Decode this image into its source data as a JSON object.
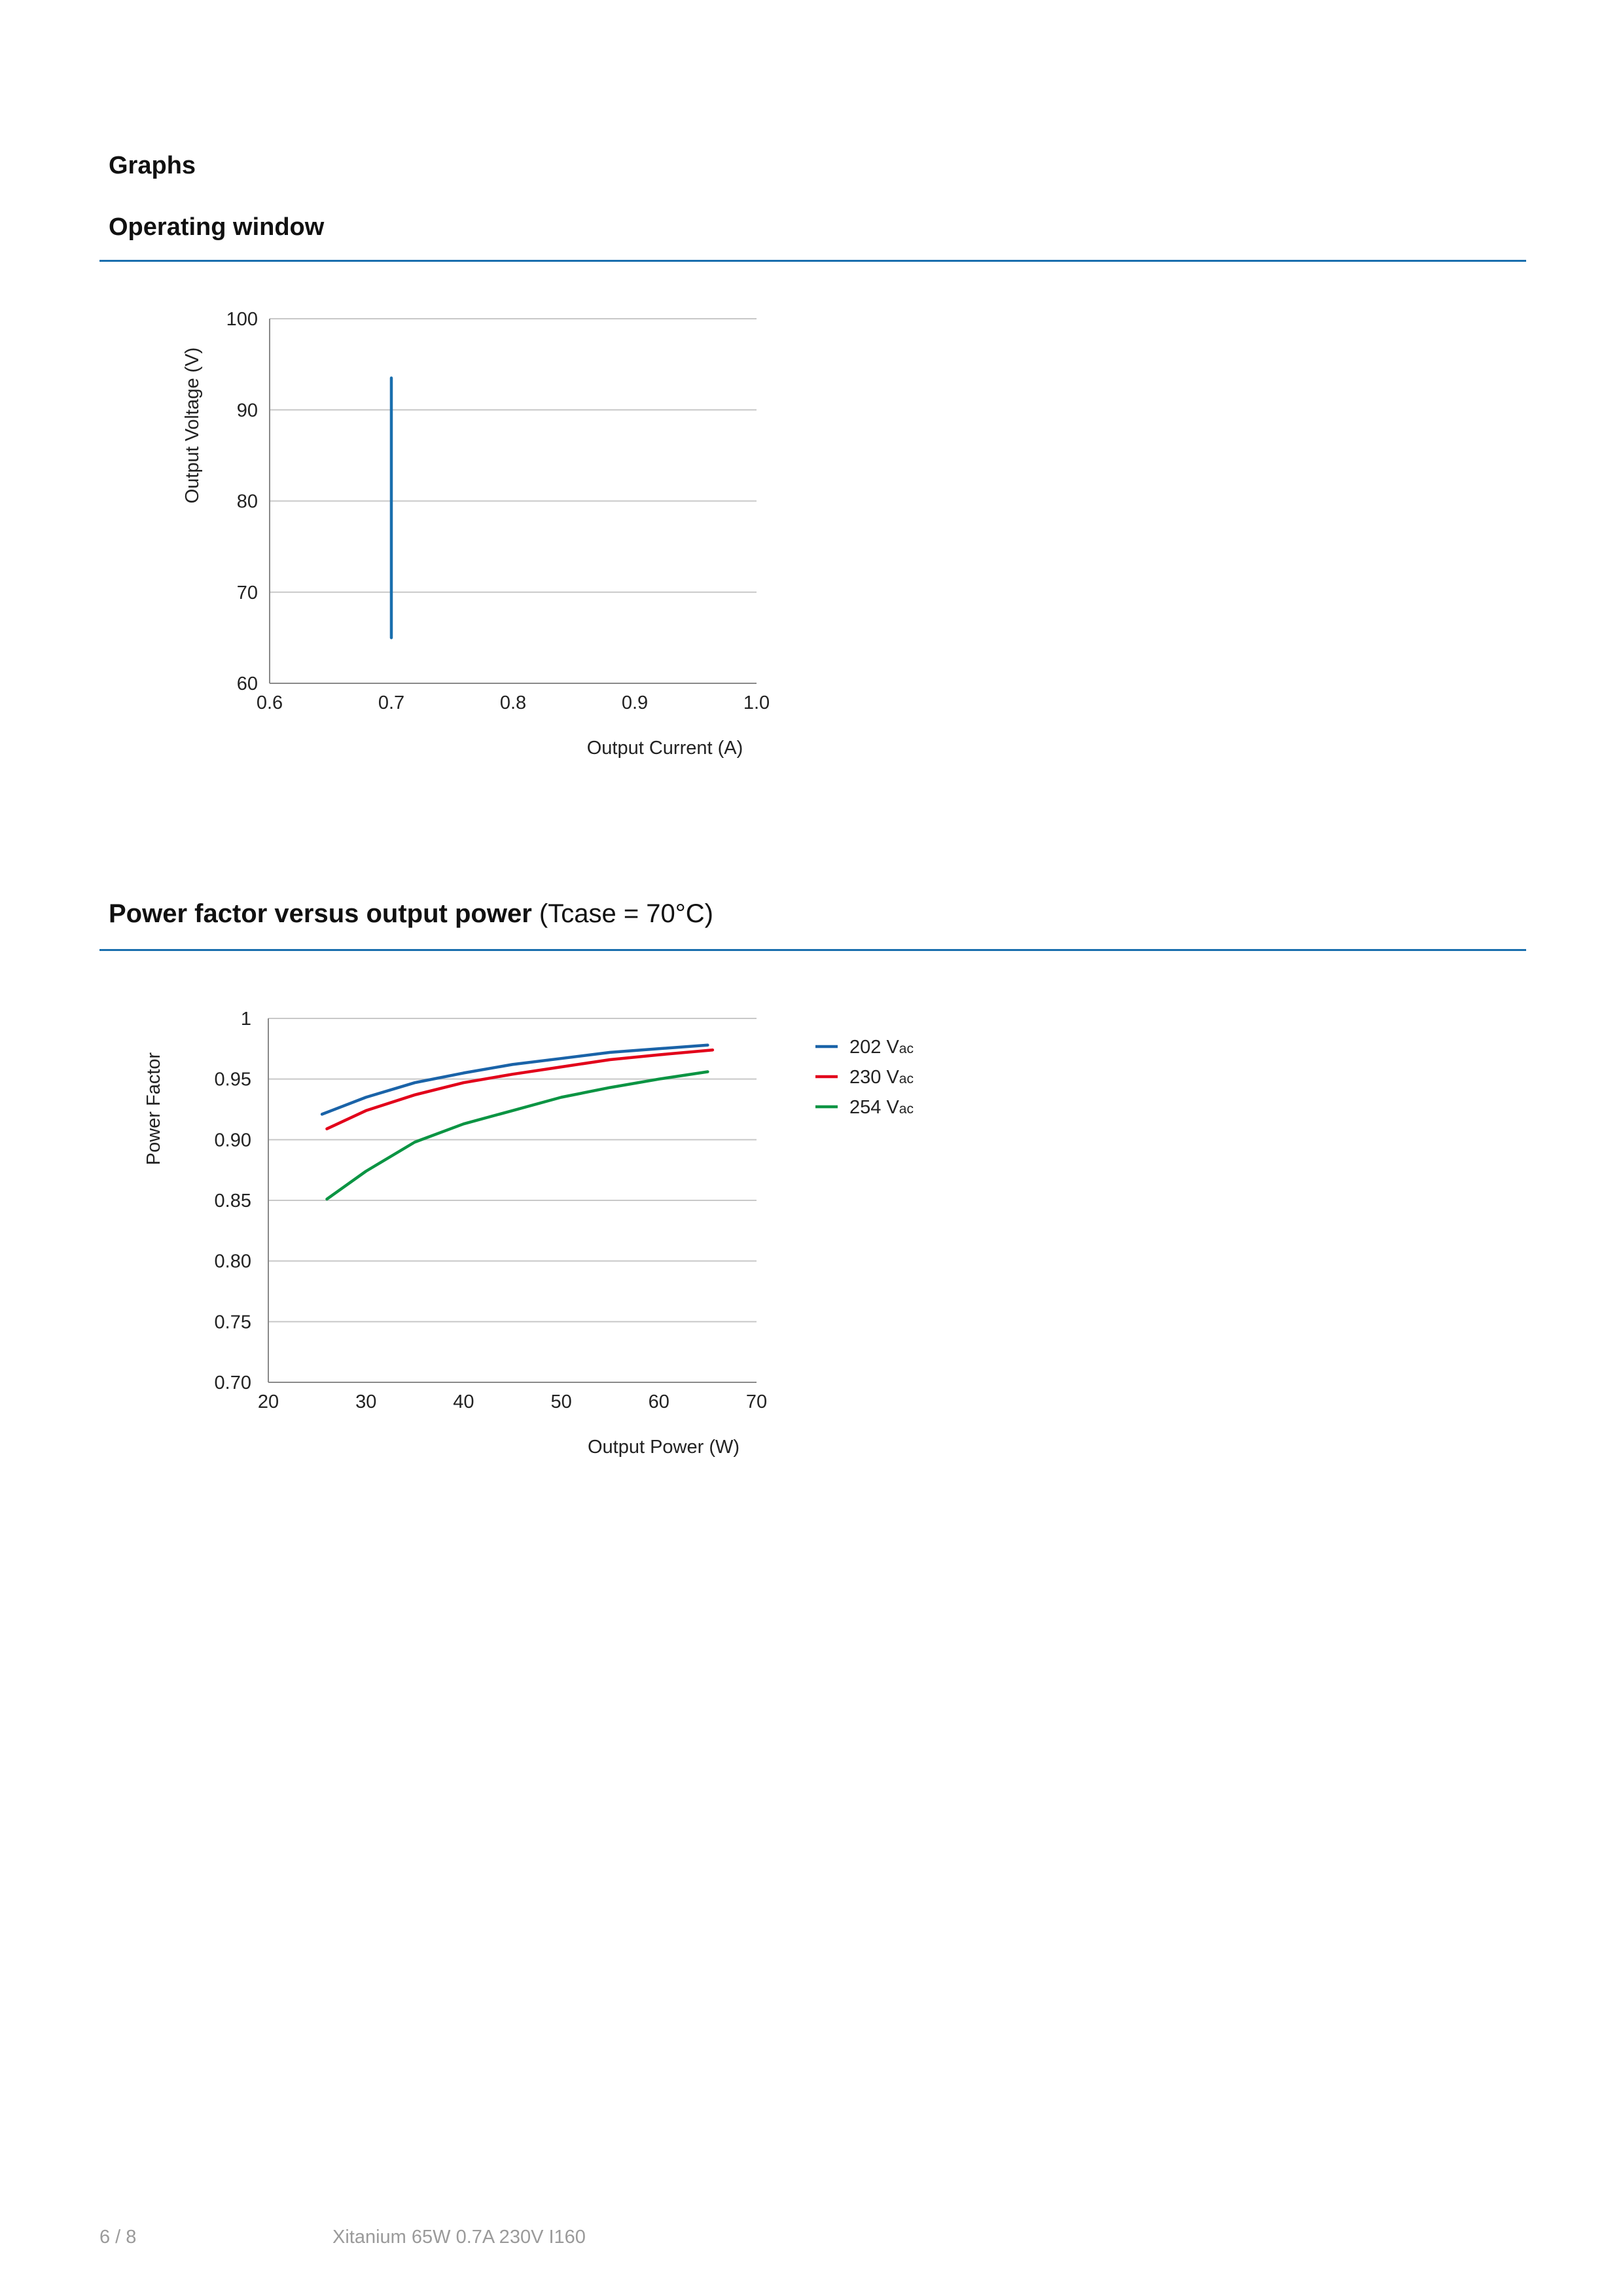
{
  "page": {
    "section_title": "Graphs",
    "footer_page": "6 / 8",
    "footer_product": "Xitanium 65W 0.7A 230V I160"
  },
  "colors": {
    "accent": "#1a6fae",
    "text": "#111111",
    "grid": "#c8c8c8",
    "footer": "#9a9a9a"
  },
  "operating_window": {
    "title": "Operating window"
  },
  "power_factor": {
    "title_bold": "Power factor versus output power",
    "title_normal": "(Tcase = 70°C)"
  },
  "chart_data": [
    {
      "type": "line",
      "title": "",
      "xlabel": "Output Current (A)",
      "ylabel": "Output Voltage (V)",
      "xlim": [
        0.6,
        1.0
      ],
      "ylim": [
        60,
        100
      ],
      "x_ticks": [
        "0.6",
        "0.7",
        "0.8",
        "0.9",
        "1.0"
      ],
      "y_ticks": [
        "60",
        "70",
        "80",
        "90",
        "100"
      ],
      "x_tick_values": [
        0.6,
        0.7,
        0.8,
        0.9,
        1.0
      ],
      "y_tick_values": [
        60,
        70,
        80,
        90,
        100
      ],
      "grid": "horizontal",
      "series": [
        {
          "color": "#1a6fae",
          "x": [
            0.7,
            0.7
          ],
          "y": [
            65,
            93.5
          ]
        }
      ]
    },
    {
      "type": "line",
      "title": "",
      "xlabel": "Output Power (W)",
      "ylabel": "Power Factor",
      "xlim": [
        20,
        70
      ],
      "ylim": [
        0.7,
        1.0
      ],
      "x_ticks": [
        "20",
        "30",
        "40",
        "50",
        "60",
        "70"
      ],
      "y_ticks": [
        "0.70",
        "0.75",
        "0.80",
        "0.85",
        "0.90",
        "0.95",
        "1"
      ],
      "x_tick_values": [
        20,
        30,
        40,
        50,
        60,
        70
      ],
      "y_tick_values": [
        0.7,
        0.75,
        0.8,
        0.85,
        0.9,
        0.95,
        1.0
      ],
      "grid": "horizontal",
      "legend_position": "right",
      "series": [
        {
          "name": "202 V",
          "name_sub": "ac",
          "color": "#1a63a8",
          "x": [
            25.5,
            30,
            35,
            40,
            45,
            50,
            55,
            60,
            65
          ],
          "y": [
            0.921,
            0.935,
            0.947,
            0.955,
            0.962,
            0.967,
            0.972,
            0.975,
            0.978
          ]
        },
        {
          "name": "230 V",
          "name_sub": "ac",
          "color": "#e2001a",
          "x": [
            26,
            30,
            35,
            40,
            45,
            50,
            55,
            60,
            65.5
          ],
          "y": [
            0.909,
            0.924,
            0.937,
            0.947,
            0.954,
            0.96,
            0.966,
            0.97,
            0.974
          ]
        },
        {
          "name": "254 V",
          "name_sub": "ac",
          "color": "#0b9443",
          "x": [
            26,
            30,
            35,
            40,
            45,
            50,
            55,
            60,
            65
          ],
          "y": [
            0.851,
            0.874,
            0.898,
            0.913,
            0.924,
            0.935,
            0.943,
            0.95,
            0.956
          ]
        }
      ]
    }
  ]
}
